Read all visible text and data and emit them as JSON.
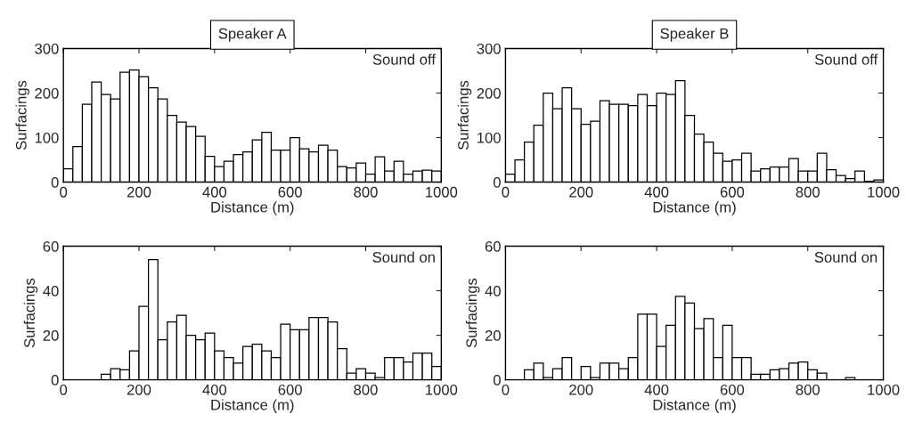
{
  "chart_data": [
    {
      "type": "histogram",
      "title": "Speaker A",
      "xlabel": "Distance (m)",
      "ylabel": "Surfacings",
      "annotations": [
        "Sound off"
      ],
      "color": "#ffffff",
      "bins": [
        0,
        25,
        50,
        75,
        100,
        125,
        150,
        175,
        200,
        225,
        250,
        275,
        300,
        325,
        350,
        375,
        400,
        425,
        450,
        475,
        500,
        525,
        550,
        575,
        600,
        625,
        650,
        675,
        700,
        725,
        750,
        775,
        800,
        825,
        850,
        875,
        900,
        925,
        950,
        975,
        1000
      ],
      "values": [
        30,
        80,
        175,
        225,
        197,
        187,
        247,
        252,
        237,
        212,
        187,
        150,
        135,
        125,
        103,
        58,
        35,
        47,
        62,
        68,
        95,
        112,
        72,
        72,
        100,
        75,
        68,
        83,
        72,
        35,
        32,
        43,
        18,
        57,
        25,
        47,
        18,
        25,
        27,
        25
      ],
      "xlim": [
        0,
        1000
      ],
      "xticks": [
        0,
        200,
        400,
        600,
        800,
        1000
      ],
      "ylim": [
        0,
        300
      ],
      "yticks": [
        0,
        100,
        200,
        300
      ]
    },
    {
      "type": "histogram",
      "title": "Speaker B",
      "xlabel": "Distance (m)",
      "ylabel": "Surfacings",
      "annotations": [
        "Sound off"
      ],
      "color": "#ffffff",
      "bins": [
        0,
        25,
        50,
        75,
        100,
        125,
        150,
        175,
        200,
        225,
        250,
        275,
        300,
        325,
        350,
        375,
        400,
        425,
        450,
        475,
        500,
        525,
        550,
        575,
        600,
        625,
        650,
        675,
        700,
        725,
        750,
        775,
        800,
        825,
        850,
        875,
        900,
        925,
        950,
        975,
        1000
      ],
      "values": [
        18,
        50,
        90,
        128,
        200,
        165,
        212,
        165,
        130,
        137,
        183,
        175,
        175,
        172,
        197,
        172,
        200,
        197,
        228,
        150,
        108,
        90,
        65,
        47,
        50,
        65,
        25,
        30,
        34,
        34,
        53,
        25,
        25,
        65,
        28,
        15,
        8,
        25,
        2,
        5
      ],
      "xlim": [
        0,
        1000
      ],
      "xticks": [
        0,
        200,
        400,
        600,
        800,
        1000
      ],
      "ylim": [
        0,
        300
      ],
      "yticks": [
        0,
        100,
        200,
        300
      ]
    },
    {
      "type": "histogram",
      "xlabel": "Distance (m)",
      "ylabel": "Surfacings",
      "annotations": [
        "Sound on"
      ],
      "color": "#ffffff",
      "bins": [
        0,
        25,
        50,
        75,
        100,
        125,
        150,
        175,
        200,
        225,
        250,
        275,
        300,
        325,
        350,
        375,
        400,
        425,
        450,
        475,
        500,
        525,
        550,
        575,
        600,
        625,
        650,
        675,
        700,
        725,
        750,
        775,
        800,
        825,
        850,
        875,
        900,
        925,
        950,
        975,
        1000
      ],
      "values": [
        0,
        0,
        0,
        0,
        2.5,
        5,
        4.5,
        13,
        33,
        54,
        18,
        26,
        29,
        20,
        18,
        21,
        13,
        10,
        7.5,
        15,
        16,
        13,
        10,
        25,
        22.5,
        22.5,
        28,
        28,
        26,
        14,
        3,
        5,
        3,
        1,
        10,
        10,
        8,
        12,
        12,
        6
      ],
      "xlim": [
        0,
        1000
      ],
      "xticks": [
        0,
        200,
        400,
        600,
        800,
        1000
      ],
      "ylim": [
        0,
        60
      ],
      "yticks": [
        0,
        20,
        40,
        60
      ]
    },
    {
      "type": "histogram",
      "xlabel": "Distance (m)",
      "ylabel": "Surfacings",
      "annotations": [
        "Sound on"
      ],
      "color": "#ffffff",
      "bins": [
        0,
        25,
        50,
        75,
        100,
        125,
        150,
        175,
        200,
        225,
        250,
        275,
        300,
        325,
        350,
        375,
        400,
        425,
        450,
        475,
        500,
        525,
        550,
        575,
        600,
        625,
        650,
        675,
        700,
        725,
        750,
        775,
        800,
        825,
        850,
        875,
        900,
        925,
        950,
        975,
        1000
      ],
      "values": [
        0,
        0,
        4.5,
        7.5,
        1,
        5,
        10,
        0,
        6,
        1,
        7.5,
        7.5,
        5,
        10,
        29.5,
        29.5,
        15,
        24.5,
        37.5,
        34.5,
        23,
        27.5,
        10,
        24.5,
        10,
        10,
        2.5,
        2.5,
        4.5,
        5,
        7.5,
        8,
        4.5,
        3,
        0,
        0,
        1,
        0,
        0,
        0
      ],
      "xlim": [
        0,
        1000
      ],
      "xticks": [
        0,
        200,
        400,
        600,
        800,
        1000
      ],
      "ylim": [
        0,
        60
      ],
      "yticks": [
        0,
        20,
        40,
        60
      ]
    }
  ]
}
